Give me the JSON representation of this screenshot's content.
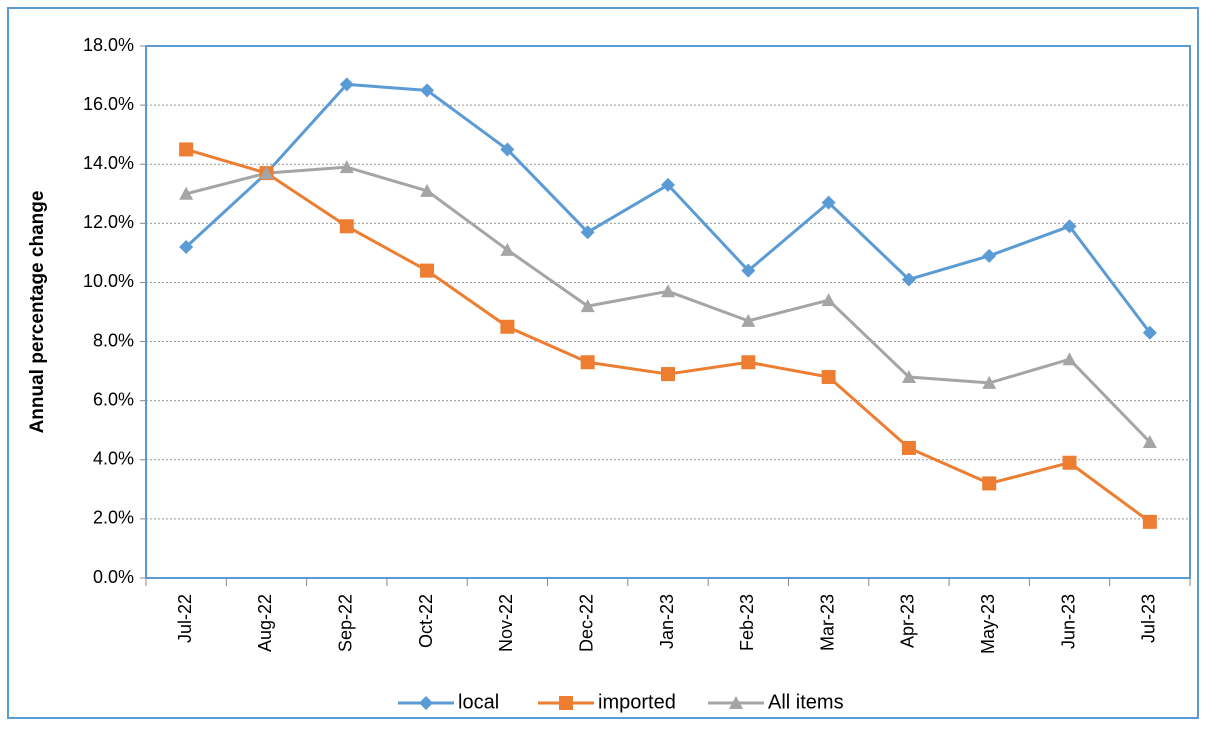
{
  "chart_data": {
    "type": "line",
    "ylabel": "Annual percentage change",
    "categories": [
      "Jul-22",
      "Aug-22",
      "Sep-22",
      "Oct-22",
      "Nov-22",
      "Dec-22",
      "Jan-23",
      "Feb-23",
      "Mar-23",
      "Apr-23",
      "May-23",
      "Jun-23",
      "Jul-23"
    ],
    "series": [
      {
        "name": "local",
        "color": "#5b9bd5",
        "marker": "diamond",
        "values": [
          11.2,
          13.7,
          16.7,
          16.5,
          14.5,
          11.7,
          13.3,
          10.4,
          12.7,
          10.1,
          10.9,
          11.9,
          8.3
        ]
      },
      {
        "name": "imported",
        "color": "#ed7d31",
        "marker": "square",
        "values": [
          14.5,
          13.7,
          11.9,
          10.4,
          8.5,
          7.3,
          6.9,
          7.3,
          6.8,
          4.4,
          3.2,
          3.9,
          1.9
        ]
      },
      {
        "name": "All items",
        "color": "#a5a5a5",
        "marker": "triangle",
        "values": [
          13.0,
          13.7,
          13.9,
          13.1,
          11.1,
          9.2,
          9.7,
          8.7,
          9.4,
          6.8,
          6.6,
          7.4,
          4.6
        ]
      }
    ],
    "ylim": [
      0,
      18
    ],
    "yticks": [
      {
        "value": 0,
        "label": "0.0%"
      },
      {
        "value": 2,
        "label": "2.0%"
      },
      {
        "value": 4,
        "label": "4.0%"
      },
      {
        "value": 6,
        "label": "6.0%"
      },
      {
        "value": 8,
        "label": "8.0%"
      },
      {
        "value": 10,
        "label": "10.0%"
      },
      {
        "value": 12,
        "label": "12.0%"
      },
      {
        "value": 14,
        "label": "14.0%"
      },
      {
        "value": 16,
        "label": "16.0%"
      },
      {
        "value": 18,
        "label": "18.0%"
      }
    ],
    "grid": true,
    "legend": "bottom"
  }
}
